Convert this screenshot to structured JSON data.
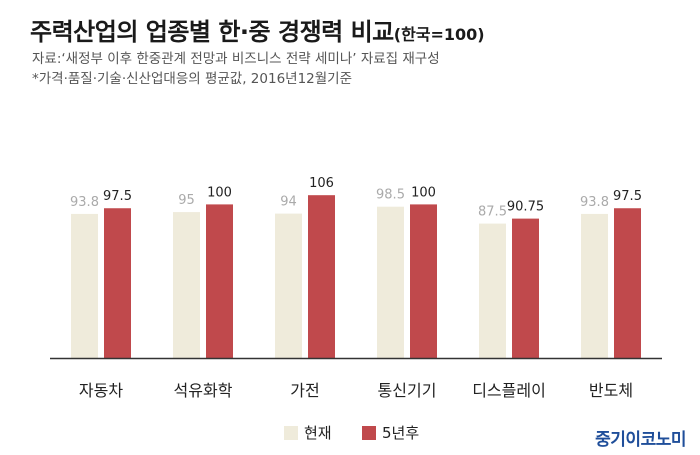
{
  "header": {
    "title": "주력산업의 업종별 한·중 경쟁력 비교",
    "title_suffix": "(한국=100)",
    "source_note": "자료:‘새정부 이후 한중관계 전망과 비즈니스 전략 세미나’ 자료집 재구성",
    "footnote": "*가격·품질·기술·신산업대응의 평균값, 2016년12월기준"
  },
  "brand": "중기이코노미",
  "colors": {
    "current": "#efebdb",
    "future": "#c0494c",
    "current_label": "#aaaaaa",
    "future_label": "#222222",
    "baseline": "#333333"
  },
  "chart_data": {
    "type": "bar",
    "categories": [
      "자동차",
      "석유화학",
      "가전",
      "통신기기",
      "디스플레이",
      "반도체"
    ],
    "series": [
      {
        "name": "현재",
        "values": [
          93.8,
          95,
          94,
          98.5,
          87.5,
          93.8
        ],
        "labels": [
          "93.8",
          "95",
          "94",
          "98.5",
          "87.5",
          "93.8"
        ]
      },
      {
        "name": "5년후",
        "values": [
          97.5,
          100,
          106,
          100,
          90.75,
          97.5
        ],
        "labels": [
          "97.5",
          "100",
          "106",
          "100",
          "90.75",
          "97.5"
        ]
      }
    ],
    "xlabel": "",
    "ylabel": "",
    "ylim": [
      0,
      120
    ],
    "grid": false,
    "legend": "bottom-center"
  }
}
